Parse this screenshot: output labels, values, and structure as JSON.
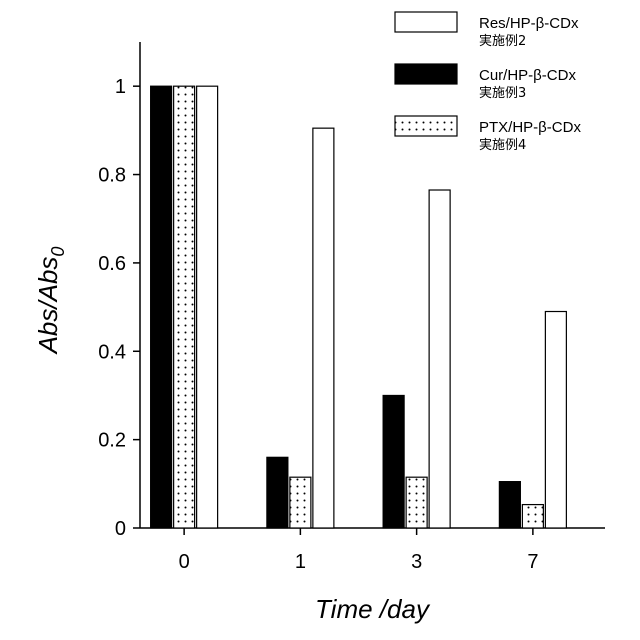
{
  "chart_data": {
    "type": "bar",
    "categories": [
      "0",
      "1",
      "3",
      "7"
    ],
    "xlabel": "Time /day",
    "ylabel_main": "Abs/Abs",
    "ylabel_sub": "0",
    "ylim": [
      0,
      1.1
    ],
    "yticks": [
      0,
      0.2,
      0.4,
      0.6,
      0.8,
      1
    ],
    "ytick_labels": [
      "0",
      "0.2",
      "0.4",
      "0.6",
      "0.8",
      "1"
    ],
    "grid": false,
    "legend_position": "top-right",
    "series": [
      {
        "name": "Cur/HP-β-CDx",
        "note": "実施例3",
        "fill": "solid-black",
        "values": [
          1.0,
          0.16,
          0.3,
          0.105
        ]
      },
      {
        "name": "PTX/HP-β-CDx",
        "note": "実施例4",
        "fill": "dotted",
        "values": [
          1.0,
          0.115,
          0.115,
          0.053
        ]
      },
      {
        "name": "Res/HP-β-CDx",
        "note": "実施例2",
        "fill": "white",
        "values": [
          1.0,
          0.905,
          0.765,
          0.49
        ]
      }
    ],
    "legend_order": [
      2,
      0,
      1
    ]
  }
}
